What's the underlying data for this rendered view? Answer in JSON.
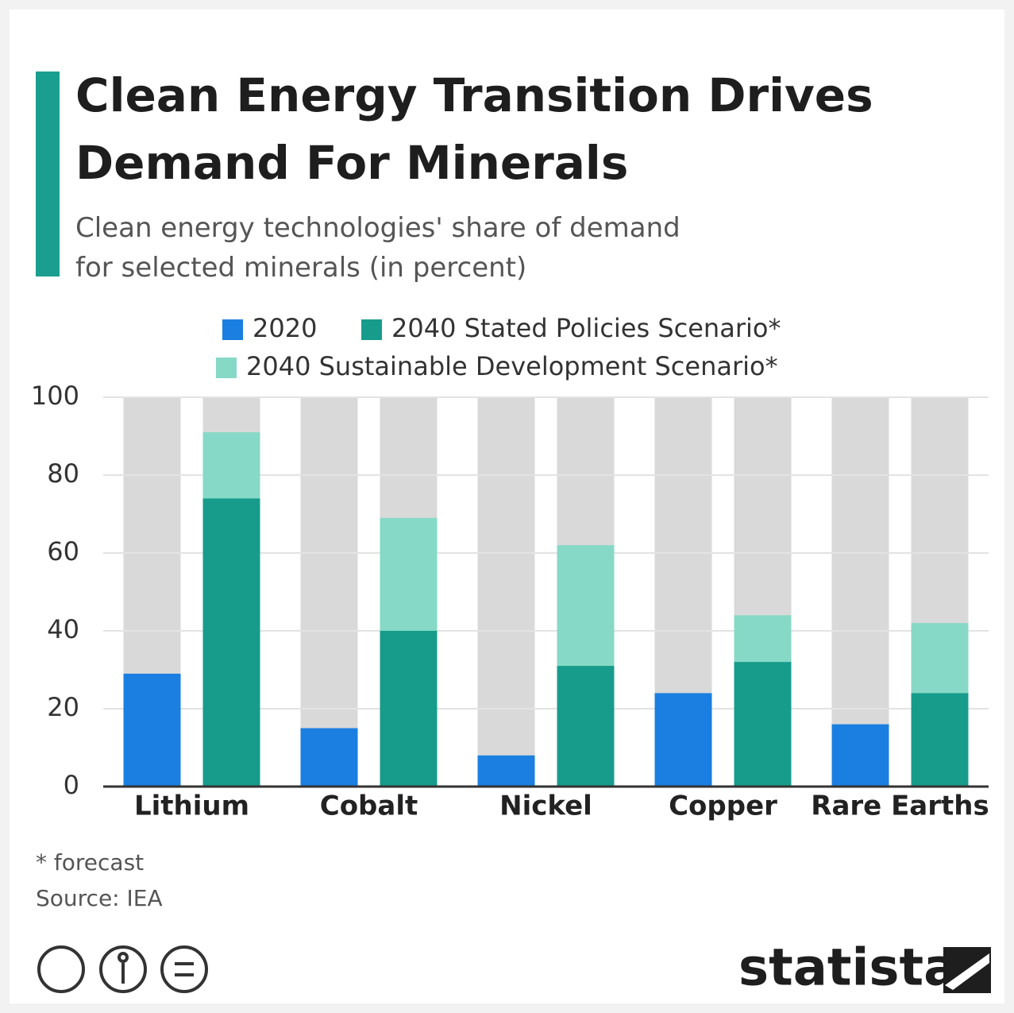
{
  "chart_data": {
    "type": "bar",
    "title": [
      "Clean Energy Transition Drives",
      "Demand For Minerals"
    ],
    "subtitle": [
      "Clean energy technologies' share of demand",
      "for selected minerals (in percent)"
    ],
    "categories": [
      "Lithium",
      "Cobalt",
      "Nickel",
      "Copper",
      "Rare Earths"
    ],
    "series": [
      {
        "name": "2020",
        "color": "#1a7fe0",
        "values": [
          29,
          15,
          8,
          24,
          16
        ]
      },
      {
        "name": "2040 Stated Policies Scenario*",
        "color": "#179c8c",
        "values": [
          74,
          40,
          31,
          32,
          24
        ]
      },
      {
        "name": "2040 Sustainable Development Scenario*",
        "color": "#86d9c6",
        "values": [
          91,
          69,
          62,
          44,
          42
        ]
      }
    ],
    "ylim": [
      0,
      100
    ],
    "yticks": [
      0,
      20,
      40,
      60,
      80,
      100
    ],
    "grid": true,
    "footnote": "* forecast",
    "source": "Source: IEA",
    "brand": "statista"
  }
}
